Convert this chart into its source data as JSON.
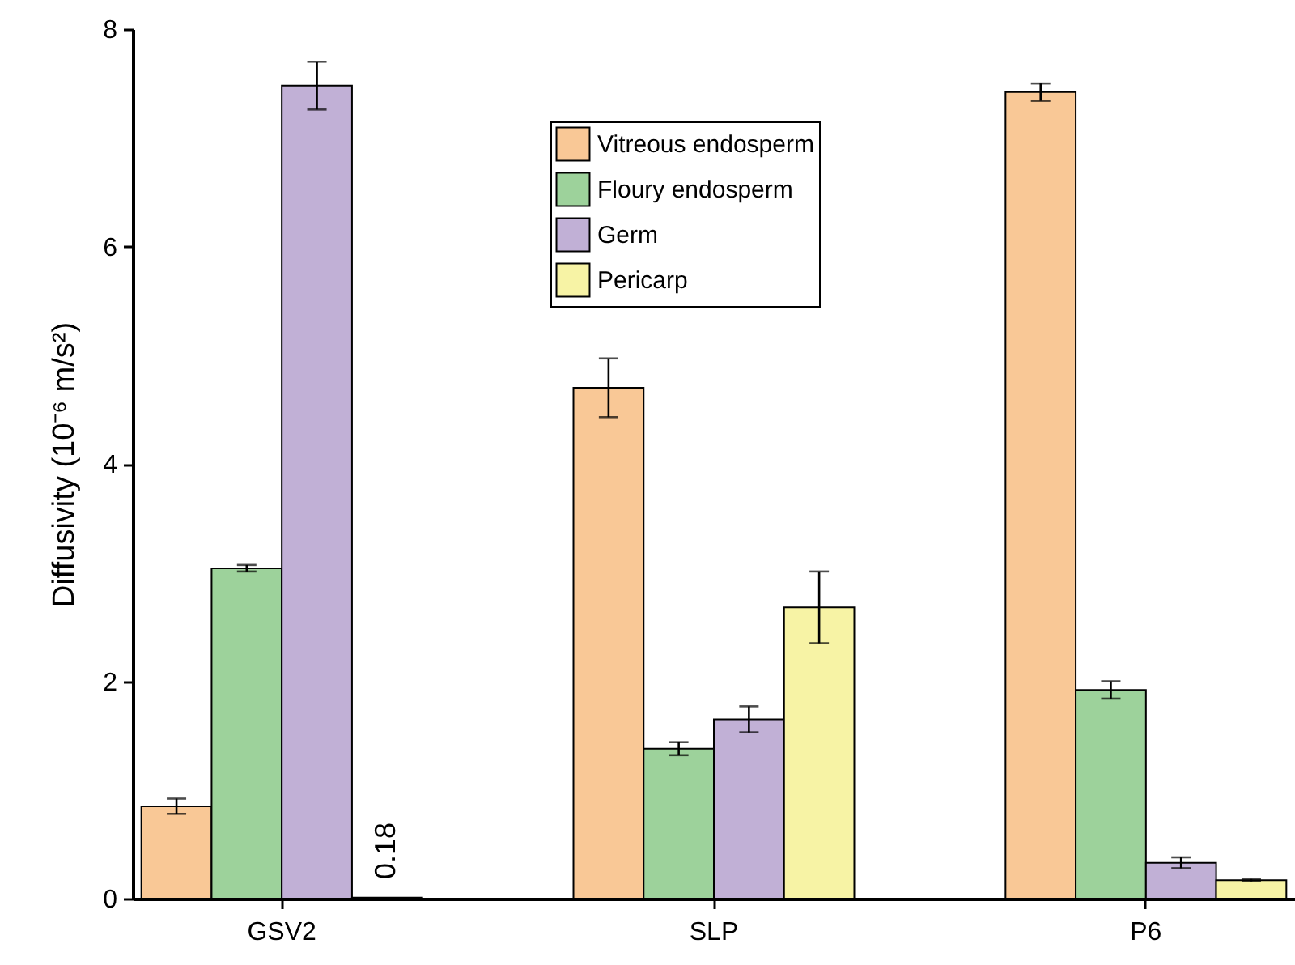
{
  "chart_data": {
    "type": "bar",
    "ylabel": "Diffusivity (10⁻⁶ m/s²)",
    "categories": [
      "GSV2",
      "SLP",
      "P6"
    ],
    "series": [
      {
        "name": "Vitreous endosperm",
        "color": "#f9c896",
        "values": [
          0.85,
          4.7,
          7.42
        ],
        "errors": [
          0.07,
          0.27,
          0.08
        ]
      },
      {
        "name": "Floury endosperm",
        "color": "#9dd29b",
        "values": [
          3.04,
          1.38,
          1.92
        ],
        "errors": [
          0.03,
          0.06,
          0.08
        ]
      },
      {
        "name": "Germ",
        "color": "#c1b0d6",
        "values": [
          7.48,
          1.65,
          0.33
        ],
        "errors": [
          0.22,
          0.12,
          0.05
        ]
      },
      {
        "name": "Pericarp",
        "color": "#f7f3a5",
        "values": [
          0.01,
          2.68,
          0.17
        ],
        "errors": [
          null,
          0.33,
          0.01
        ]
      }
    ],
    "annotations": [
      "0.18"
    ],
    "ylim": [
      0,
      8
    ],
    "yticks": [
      0,
      2,
      4,
      6,
      8
    ],
    "grid": false,
    "legend": "top"
  }
}
